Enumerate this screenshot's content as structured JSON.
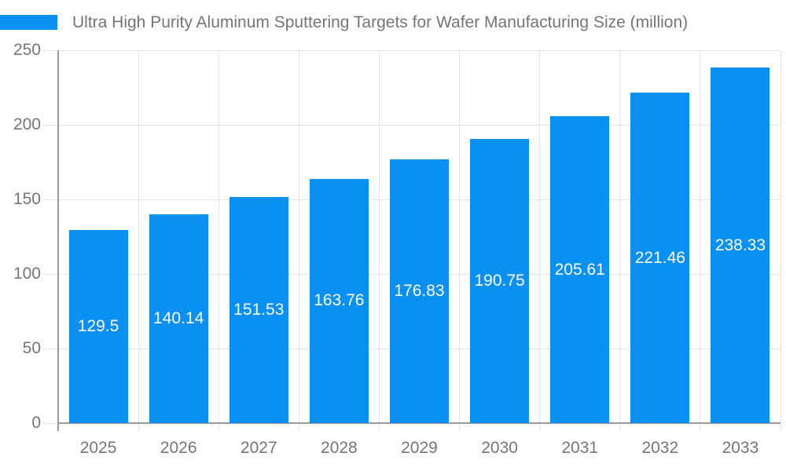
{
  "legend": {
    "label": "Ultra High Purity Aluminum Sputtering Targets for Wafer Manufacturing Size (million)"
  },
  "chart_data": {
    "type": "bar",
    "title": "Ultra High Purity Aluminum Sputtering Targets for Wafer Manufacturing Size (million)",
    "categories": [
      "2025",
      "2026",
      "2027",
      "2028",
      "2029",
      "2030",
      "2031",
      "2032",
      "2033"
    ],
    "values": [
      129.5,
      140.14,
      151.53,
      163.76,
      176.83,
      190.75,
      205.61,
      221.46,
      238.33
    ],
    "value_labels": [
      "129.5",
      "140.14",
      "151.53",
      "163.76",
      "176.83",
      "190.75",
      "205.61",
      "221.46",
      "238.33"
    ],
    "xlabel": "",
    "ylabel": "",
    "ylim": [
      0,
      250
    ],
    "yticks": [
      0,
      50,
      100,
      150,
      200,
      250
    ],
    "ytick_labels": [
      "0",
      "50",
      "100",
      "150",
      "200",
      "250"
    ],
    "grid": true,
    "legend_position": "top-left",
    "value_label_position": "inside-center"
  },
  "colors": {
    "bar": "#0990f2",
    "text": "#757575",
    "axis": "#9a9a9a",
    "grid": "#e3e3e3",
    "value_label": "#ffffff",
    "background": "#ffffff"
  }
}
